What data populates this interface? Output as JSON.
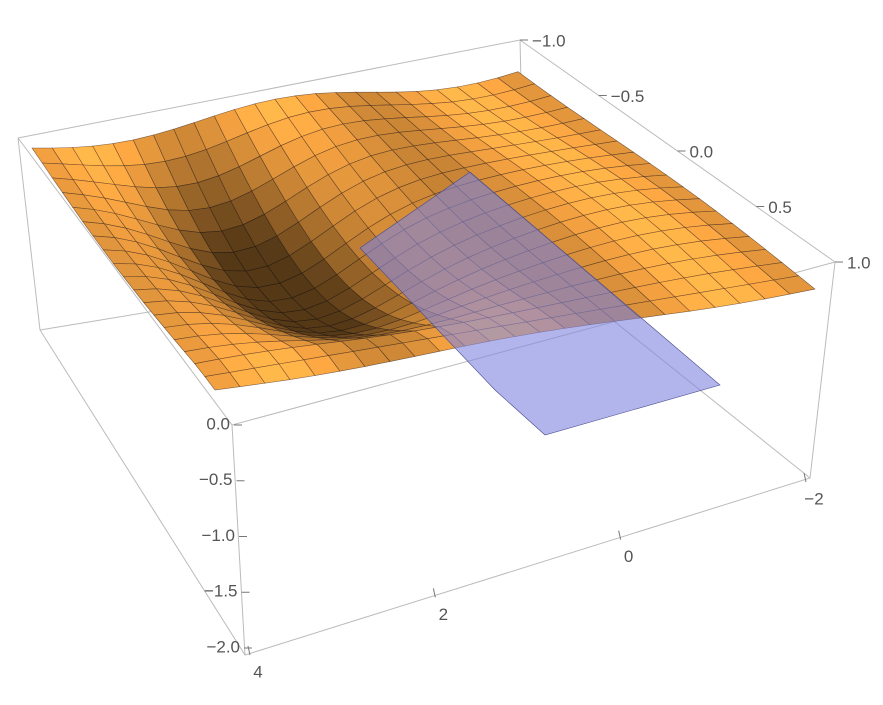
{
  "chart_data": {
    "type": "surface3d",
    "xlim": [
      -2,
      4
    ],
    "xticks": [
      {
        "value": -2,
        "label": "−2"
      },
      0,
      2,
      4
    ],
    "ylim": [
      -1,
      1
    ],
    "yticks": [
      {
        "value": -1,
        "label": "−1.0"
      },
      {
        "value": -0.5,
        "label": "−0.5"
      },
      {
        "value": 0,
        "label": "0.0"
      },
      {
        "value": 0.5,
        "label": "0.5"
      },
      {
        "value": 1,
        "label": "1.0"
      }
    ],
    "zlim": [
      -2,
      0
    ],
    "zticks": [
      {
        "value": -2,
        "label": "−2.0"
      },
      {
        "value": -1.5,
        "label": "−1.5"
      },
      {
        "value": -1,
        "label": "−1.0"
      },
      {
        "value": -0.5,
        "label": "−0.5"
      },
      {
        "value": 0,
        "label": "0.0"
      }
    ],
    "surface_color": "#f2a040",
    "plane_color": "#7f84de",
    "mesh": true
  }
}
